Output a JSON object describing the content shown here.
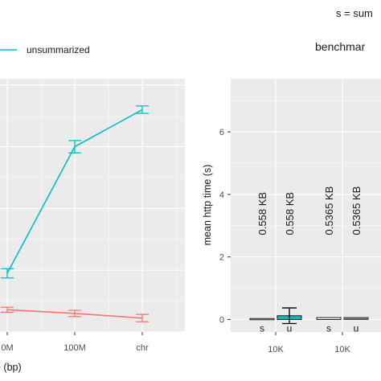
{
  "header": {
    "subtitle_partial": "s = sum",
    "legend_entry": "unsummarized",
    "facet_title_partial": "benchmar"
  },
  "colors": {
    "unsummarized": "#00BFC4",
    "summarized": "#F8766D",
    "panel_bg": "#EBEBEB",
    "grid": "#FFFFFF"
  },
  "chart_data": [
    {
      "type": "line",
      "xlabel_partial": "e (bp)",
      "ylabel": "",
      "categories": [
        "0M",
        "100M",
        "chr"
      ],
      "series": [
        {
          "name": "unsummarized",
          "values": [
            1.9,
            6.0,
            7.2
          ],
          "err": [
            0.15,
            0.2,
            0.12
          ]
        },
        {
          "name": "",
          "values": [
            0.72,
            0.6,
            0.45
          ],
          "err": [
            0.08,
            0.1,
            0.12
          ]
        }
      ],
      "ylim": [
        0,
        8.2
      ],
      "grid": true
    },
    {
      "type": "bar",
      "ylabel": "mean http time (s)",
      "yticks": [
        "0",
        "2",
        "4",
        "6"
      ],
      "ylim": [
        -0.4,
        7.7
      ],
      "groups": [
        {
          "name": "10K",
          "bars": [
            {
              "label": "s",
              "value": 0.03,
              "err": 0,
              "annotation": "0.558 KB"
            },
            {
              "label": "u",
              "value": 0.12,
              "err": 0.25,
              "annotation": "0.558 KB"
            }
          ]
        },
        {
          "name": "10K",
          "bars": [
            {
              "label": "s",
              "value": 0.06,
              "err": 0,
              "annotation": "0.5365 KB"
            },
            {
              "label": "u",
              "value": 0.06,
              "err": 0,
              "annotation": "0.5365 KB"
            }
          ]
        }
      ],
      "grid": true
    }
  ]
}
